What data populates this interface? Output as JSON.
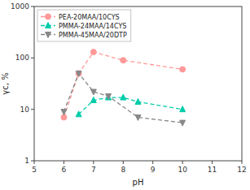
{
  "chart_data": {
    "type": "line",
    "x_label": "pH",
    "y_label": "γc, %",
    "series": [
      {
        "name": "PEA-20MAA/10CYS",
        "color": "#FF9999",
        "marker": "circle",
        "line_style": "dashed",
        "x": [
          6.0,
          6.5,
          7.0,
          8.0,
          10.0
        ],
        "values": [
          7.0,
          50,
          130,
          90,
          60
        ]
      },
      {
        "name": "PMMA-24MAA/14CYS",
        "color": "#00CCAA",
        "marker": "triangle-up",
        "line_style": "dashed",
        "x": [
          6.5,
          7.0,
          7.5,
          8.0,
          8.5,
          10.0
        ],
        "values": [
          8.0,
          15,
          17,
          17,
          14,
          10
        ]
      },
      {
        "name": "PMMA-45MAA/20DTP",
        "color": "#888888",
        "marker": "triangle-down",
        "line_style": "dashed",
        "x": [
          6.0,
          6.5,
          7.0,
          7.5,
          8.5,
          10.0
        ],
        "values": [
          9.0,
          50,
          22,
          18,
          7,
          5.5
        ]
      }
    ],
    "xlim": [
      5,
      12
    ],
    "xticks": [
      5,
      6,
      7,
      8,
      9,
      10,
      11,
      12
    ],
    "ylim": [
      1,
      1000
    ],
    "yticks": [
      1,
      10,
      100,
      1000
    ],
    "log": "y",
    "grid": false,
    "legend": "upper-left"
  }
}
